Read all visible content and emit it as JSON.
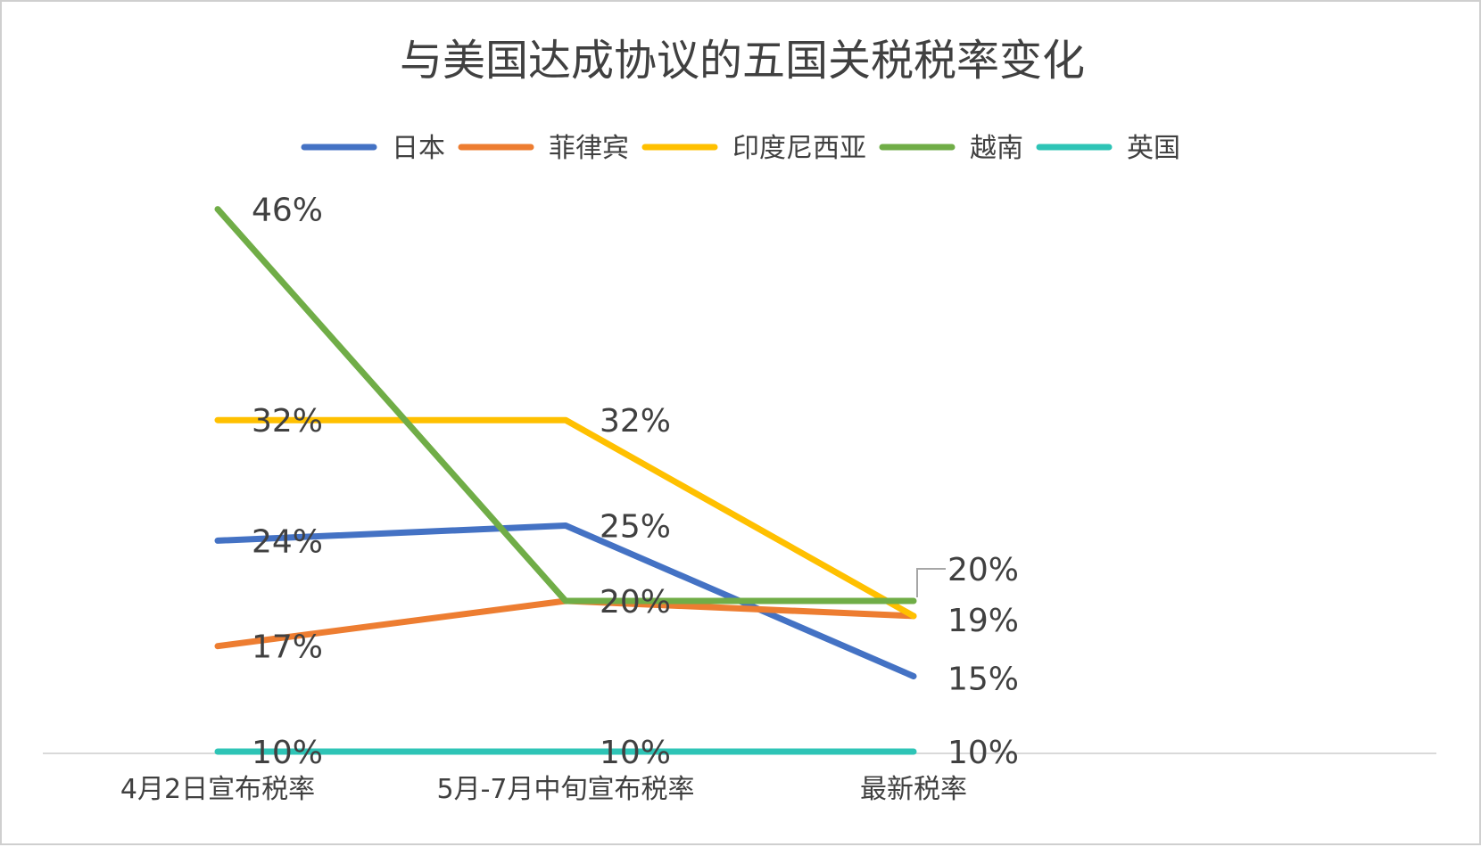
{
  "chart_data": {
    "type": "line",
    "title": "与美国达成协议的五国关税税率变化",
    "categories": [
      "4月2日宣布税率",
      "5月-7月中旬宣布税率",
      "最新税率"
    ],
    "series": [
      {
        "name": "日本",
        "values": [
          24,
          25,
          15
        ],
        "labels": [
          "24%",
          "25%",
          "15%"
        ],
        "color": "#4472C4"
      },
      {
        "name": "菲律宾",
        "values": [
          17,
          20,
          19
        ],
        "labels": [
          "17%",
          "20%",
          "19%"
        ],
        "color": "#ED7D31"
      },
      {
        "name": "印度尼西亚",
        "values": [
          32,
          32,
          19
        ],
        "labels": [
          "32%",
          "32%",
          ""
        ],
        "color": "#FFC000"
      },
      {
        "name": "越南",
        "values": [
          46,
          20,
          20
        ],
        "labels": [
          "46%",
          "",
          "20%"
        ],
        "color": "#70AD47"
      },
      {
        "name": "英国",
        "values": [
          10,
          10,
          10
        ],
        "labels": [
          "10%",
          "10%",
          "10%"
        ],
        "color": "#2EC4B6"
      }
    ],
    "legend_position": "top",
    "grid": false,
    "xlabel": "",
    "ylabel": ""
  }
}
